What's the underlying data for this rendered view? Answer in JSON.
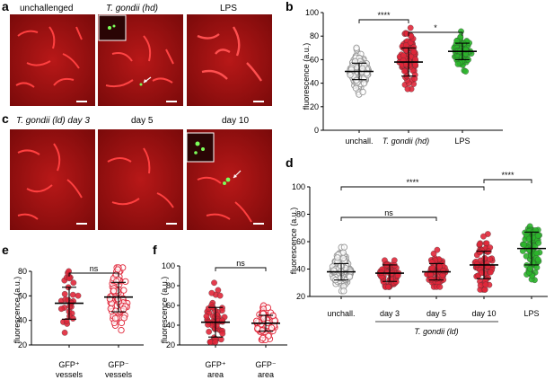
{
  "panels": {
    "a": {
      "letter": "a",
      "images": [
        "unchallenged",
        "T. gondii (hd)",
        "LPS"
      ]
    },
    "b": {
      "letter": "b"
    },
    "c": {
      "letter": "c",
      "images": [
        "T. gondii (ld) day 3",
        "day 5",
        "day 10"
      ]
    },
    "d": {
      "letter": "d"
    },
    "e": {
      "letter": "e"
    },
    "f": {
      "letter": "f"
    }
  },
  "colors": {
    "unchallenged": "#bbbbbb",
    "tgondii": "#e0273a",
    "lps": "#2bb52b",
    "micrograph": "#a01010",
    "gfp": "#7cff5a"
  },
  "chart_data": [
    {
      "type": "scatter",
      "ylabel": "fluorescence (a.u.)",
      "ylim": [
        0,
        100
      ],
      "yticks": [
        0,
        20,
        40,
        60,
        80,
        100
      ],
      "categories": [
        "unchall.",
        "T. gondii (hd)",
        "LPS"
      ],
      "series": [
        {
          "category": "unchall.",
          "mean": 50,
          "sd": 7,
          "marker": "open",
          "color": "#999999",
          "n": 150,
          "min": 30,
          "max": 70
        },
        {
          "category": "T. gondii (hd)",
          "mean": 58,
          "sd": 12,
          "marker": "filled",
          "color": "#e0273a",
          "n": 90,
          "min": 35,
          "max": 87
        },
        {
          "category": "LPS",
          "mean": 67,
          "sd": 7,
          "marker": "filled",
          "color": "#2bb52b",
          "n": 80,
          "min": 50,
          "max": 85
        }
      ],
      "comparisons": [
        {
          "from": 0,
          "to": 1,
          "label": "****"
        },
        {
          "from": 1,
          "to": 2,
          "label": "*"
        }
      ]
    },
    {
      "type": "scatter",
      "ylabel": "fluorescence (a.u.)",
      "ylim": [
        20,
        100
      ],
      "yticks": [
        20,
        40,
        60,
        80,
        100
      ],
      "categories": [
        "unchall.",
        "day 3",
        "day 5",
        "day 10",
        "LPS"
      ],
      "group_label": "T. gondii (ld)",
      "series": [
        {
          "category": "unchall.",
          "mean": 38,
          "sd": 6,
          "marker": "open",
          "color": "#999999",
          "n": 160,
          "min": 24,
          "max": 66
        },
        {
          "category": "day 3",
          "mean": 37,
          "sd": 6,
          "marker": "filled",
          "color": "#e0273a",
          "n": 70,
          "min": 27,
          "max": 56
        },
        {
          "category": "day 5",
          "mean": 38,
          "sd": 6,
          "marker": "filled",
          "color": "#e0273a",
          "n": 70,
          "min": 27,
          "max": 54
        },
        {
          "category": "day 10",
          "mean": 43,
          "sd": 10,
          "marker": "filled",
          "color": "#e0273a",
          "n": 80,
          "min": 25,
          "max": 95
        },
        {
          "category": "LPS",
          "mean": 55,
          "sd": 12,
          "marker": "filled",
          "color": "#2bb52b",
          "n": 80,
          "min": 32,
          "max": 90
        }
      ],
      "comparisons": [
        {
          "from": 0,
          "to": 2,
          "label": "ns"
        },
        {
          "from": 0,
          "to": 3,
          "label": "****"
        },
        {
          "from": 3,
          "to": 4,
          "label": "****"
        }
      ]
    },
    {
      "type": "scatter",
      "ylabel": "fluorescence (a.u.)",
      "ylim": [
        20,
        80
      ],
      "yticks": [
        20,
        40,
        60,
        80
      ],
      "categories": [
        "GFP+ vessels",
        "GFP− vessels"
      ],
      "category_lines": [
        [
          "GFP⁺",
          "vessels"
        ],
        [
          "GFP⁻",
          "vessels"
        ]
      ],
      "series": [
        {
          "category": "GFP+ vessels",
          "mean": 54,
          "sd": 13,
          "marker": "filled",
          "color": "#e0273a",
          "n": 30,
          "min": 30,
          "max": 80
        },
        {
          "category": "GFP− vessels",
          "mean": 59,
          "sd": 12,
          "marker": "open",
          "color": "#e0273a",
          "n": 80,
          "min": 32,
          "max": 83
        }
      ],
      "comparisons": [
        {
          "from": 0,
          "to": 1,
          "label": "ns"
        }
      ]
    },
    {
      "type": "scatter",
      "ylabel": "fluorescence (a.u.)",
      "ylim": [
        20,
        100
      ],
      "yticks": [
        20,
        40,
        60,
        80,
        100
      ],
      "categories": [
        "GFP+ area",
        "GFP− area"
      ],
      "category_lines": [
        [
          "GFP⁺",
          "area"
        ],
        [
          "GFP⁻",
          "area"
        ]
      ],
      "series": [
        {
          "category": "GFP+ area",
          "mean": 43,
          "sd": 15,
          "marker": "filled",
          "color": "#e0273a",
          "n": 60,
          "min": 23,
          "max": 93
        },
        {
          "category": "GFP− area",
          "mean": 42,
          "sd": 8,
          "marker": "open",
          "color": "#e0273a",
          "n": 100,
          "min": 25,
          "max": 62
        }
      ],
      "comparisons": [
        {
          "from": 0,
          "to": 1,
          "label": "ns"
        }
      ]
    }
  ]
}
